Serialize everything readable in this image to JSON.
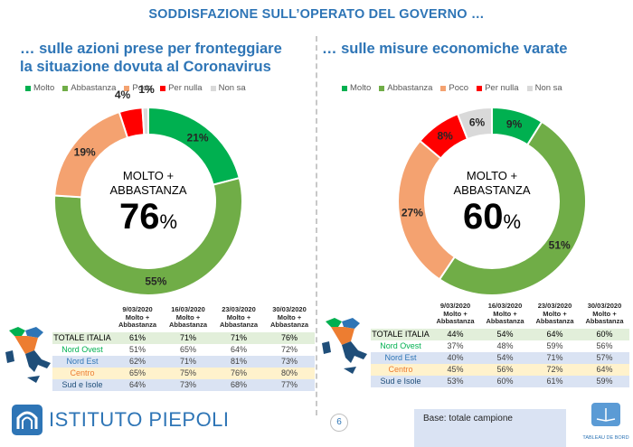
{
  "page": {
    "title": "SODDISFAZIONE SULL’OPERATO DEL GOVERNO …",
    "number": "6",
    "base_note": "Base: totale campione",
    "logo_text": "ISTITUTO PIEPOLI",
    "tableau_text": "TABLEAU DE BORD"
  },
  "colors": {
    "molto": "#00b050",
    "abbastanza": "#70ad47",
    "poco": "#f4a270",
    "per_nulla": "#ff0000",
    "non_sa": "#d9d9d9",
    "accent": "#2e75b6"
  },
  "left": {
    "subtitle_line1": "… sulle azioni prese per fronteggiare",
    "subtitle_line2": "la situazione dovuta al Coronavirus",
    "center_line1": "MOLTO +",
    "center_line2": "ABBASTANZA",
    "center_value": "76",
    "center_unit": "%"
  },
  "right": {
    "subtitle_line1": "… sulle misure economiche varate",
    "center_line1": "MOLTO +",
    "center_line2": "ABBASTANZA",
    "center_value": "60",
    "center_unit": "%"
  },
  "chart_data": [
    {
      "type": "pie",
      "donut": true,
      "categories": [
        "Molto",
        "Abbastanza",
        "Poco",
        "Per nulla",
        "Non sa"
      ],
      "values": [
        21,
        55,
        19,
        4,
        1
      ],
      "labels": [
        "21%",
        "55%",
        "19%",
        "4%",
        "1%"
      ],
      "legend": "top"
    },
    {
      "type": "pie",
      "donut": true,
      "categories": [
        "Molto",
        "Abbastanza",
        "Poco",
        "Per nulla",
        "Non sa"
      ],
      "values": [
        9,
        51,
        27,
        8,
        6
      ],
      "labels": [
        "9%",
        "51%",
        "27%",
        "8%",
        "6%"
      ],
      "legend": "top"
    },
    {
      "type": "table",
      "headers": [
        [
          "9/03/2020",
          "Molto +",
          "Abbastanza"
        ],
        [
          "16/03/2020",
          "Molto +",
          "Abbastanza"
        ],
        [
          "23/03/2020",
          "Molto +",
          "Abbastanza"
        ],
        [
          "30/03/2020",
          "Molto +",
          "Abbastanza"
        ]
      ],
      "rows": [
        {
          "label": "TOTALE ITALIA",
          "values": [
            "61%",
            "71%",
            "71%",
            "76%"
          ]
        },
        {
          "label": "Nord Ovest",
          "values": [
            "51%",
            "65%",
            "64%",
            "72%"
          ]
        },
        {
          "label": "Nord Est",
          "values": [
            "62%",
            "71%",
            "81%",
            "73%"
          ]
        },
        {
          "label": "Centro",
          "values": [
            "65%",
            "75%",
            "76%",
            "80%"
          ]
        },
        {
          "label": "Sud e Isole",
          "values": [
            "64%",
            "73%",
            "68%",
            "77%"
          ]
        }
      ]
    },
    {
      "type": "table",
      "headers": [
        [
          "9/03/2020",
          "Molto +",
          "Abbastanza"
        ],
        [
          "16/03/2020",
          "Molto +",
          "Abbastanza"
        ],
        [
          "23/03/2020",
          "Molto +",
          "Abbastanza"
        ],
        [
          "30/03/2020",
          "Molto +",
          "Abbastanza"
        ]
      ],
      "rows": [
        {
          "label": "TOTALE ITALIA",
          "values": [
            "44%",
            "54%",
            "64%",
            "60%"
          ]
        },
        {
          "label": "Nord Ovest",
          "values": [
            "37%",
            "48%",
            "59%",
            "56%"
          ]
        },
        {
          "label": "Nord Est",
          "values": [
            "40%",
            "54%",
            "71%",
            "57%"
          ]
        },
        {
          "label": "Centro",
          "values": [
            "45%",
            "56%",
            "72%",
            "64%"
          ]
        },
        {
          "label": "Sud e Isole",
          "values": [
            "53%",
            "60%",
            "61%",
            "59%"
          ]
        }
      ]
    }
  ]
}
